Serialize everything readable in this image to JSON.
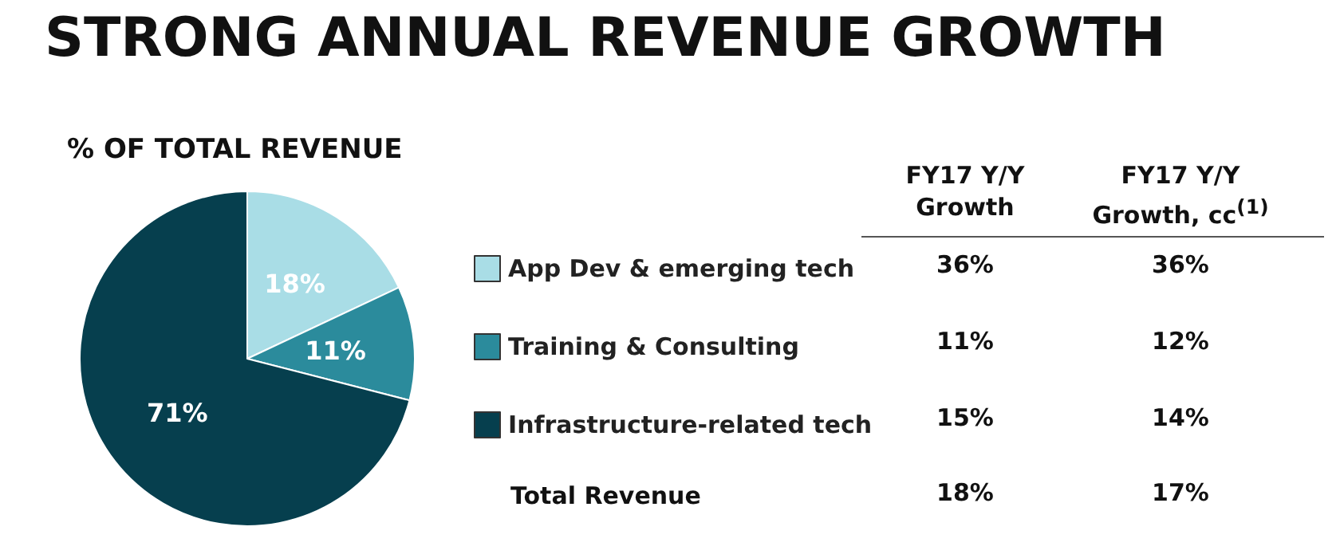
{
  "chart_data": {
    "type": "pie",
    "title": "STRONG ANNUAL REVENUE GROWTH",
    "subtitle": "% OF TOTAL REVENUE",
    "categories": [
      "App Dev & emerging tech",
      "Training & Consulting",
      "Infrastructure-related tech"
    ],
    "values": [
      18,
      11,
      71
    ],
    "colors": [
      "#a9dde6",
      "#2b8b9c",
      "#063f4e"
    ],
    "value_labels": [
      "18%",
      "11%",
      "71%"
    ],
    "legend": "right",
    "annotations": [
      "FY17 Y/Y Growth",
      "FY17 Y/Y Growth, cc$^{(1)}$",
      "36%",
      "36%",
      "11%",
      "12%",
      "15%",
      "14%",
      "Total Revenue",
      "18%",
      "17%"
    ]
  }
}
